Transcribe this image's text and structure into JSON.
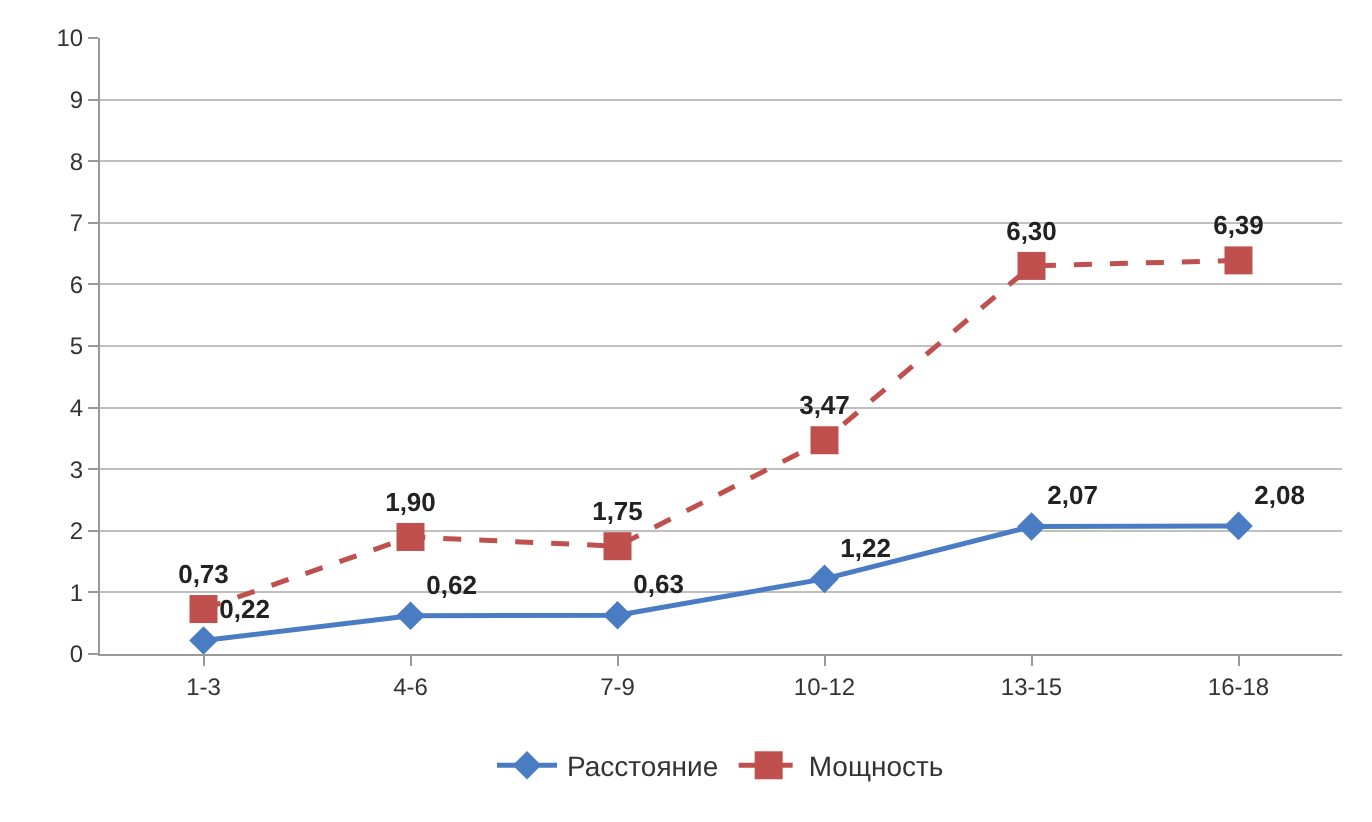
{
  "chart_data": {
    "type": "line",
    "categories": [
      "1-3",
      "4-6",
      "7-9",
      "10-12",
      "13-15",
      "16-18"
    ],
    "series": [
      {
        "name": "Расстояние",
        "color": "#4a7cc4",
        "marker": "diamond",
        "line_style": "solid",
        "values": [
          0.22,
          0.62,
          0.63,
          1.22,
          2.07,
          2.08
        ],
        "value_labels": [
          "0,22",
          "0,62",
          "0,63",
          "1,22",
          "2,07",
          "2,08"
        ]
      },
      {
        "name": "Мощность",
        "color": "#c0504d",
        "marker": "square",
        "line_style": "dashed",
        "values": [
          0.73,
          1.9,
          1.75,
          3.47,
          6.3,
          6.39
        ],
        "value_labels": [
          "0,73",
          "1,90",
          "1,75",
          "3,47",
          "6,30",
          "6,39"
        ]
      }
    ],
    "ylim": [
      0,
      10
    ],
    "yticks": [
      0,
      1,
      2,
      3,
      4,
      5,
      6,
      7,
      8,
      9,
      10
    ],
    "grid": "y",
    "legend": "bottom"
  }
}
